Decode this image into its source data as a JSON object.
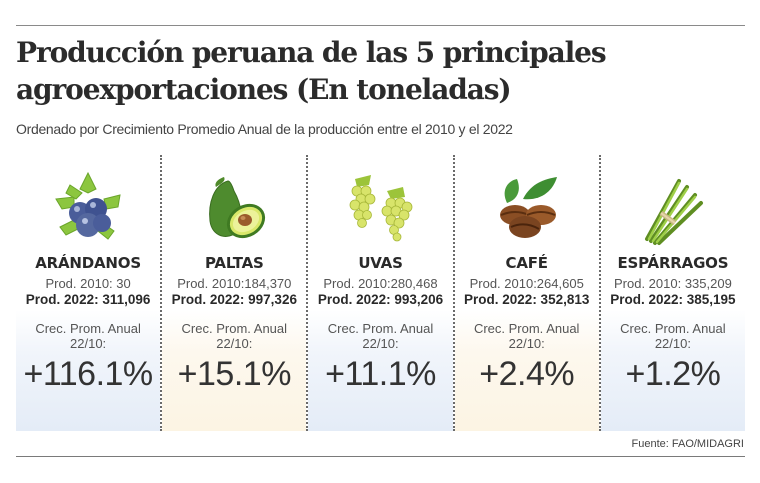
{
  "header": {
    "title": "Producción peruana de las 5 principales agroexportaciones (En toneladas)",
    "subtitle": "Ordenado por Crecimiento Promedio Anual de la producción entre el 2010 y el 2022"
  },
  "products": [
    {
      "name": "ARÁNDANOS",
      "icon": "blueberries-icon",
      "prod_2010": "Prod. 2010: 30",
      "prod_2022": "Prod. 2022: 311,096",
      "growth_label": "Crec. Prom. Anual 22/10:",
      "growth": "+116.1%",
      "tint": "#e4ecf7"
    },
    {
      "name": "PALTAS",
      "icon": "avocado-icon",
      "prod_2010": "Prod. 2010:184,370",
      "prod_2022": "Prod. 2022: 997,326",
      "growth_label": "Crec. Prom. Anual 22/10:",
      "growth": "+15.1%",
      "tint": "#fcf4e3"
    },
    {
      "name": "UVAS",
      "icon": "grapes-icon",
      "prod_2010": "Prod. 2010:280,468",
      "prod_2022": "Prod. 2022: 993,206",
      "growth_label": "Crec. Prom. Anual 22/10:",
      "growth": "+11.1%",
      "tint": "#e4ecf7"
    },
    {
      "name": "CAFÉ",
      "icon": "coffee-beans-icon",
      "prod_2010": "Prod. 2010:264,605",
      "prod_2022": "Prod. 2022: 352,813",
      "growth_label": "Crec. Prom. Anual 22/10:",
      "growth": "+2.4%",
      "tint": "#fcf4e3"
    },
    {
      "name": "ESPÁRRAGOS",
      "icon": "asparagus-icon",
      "prod_2010": "Prod. 2010: 335,209",
      "prod_2022": "Prod. 2022: 385,195",
      "growth_label": "Crec. Prom. Anual 22/10:",
      "growth": "+1.2%",
      "tint": "#e4ecf7"
    }
  ],
  "footer": {
    "source": "Fuente: FAO/MIDAGRI"
  }
}
